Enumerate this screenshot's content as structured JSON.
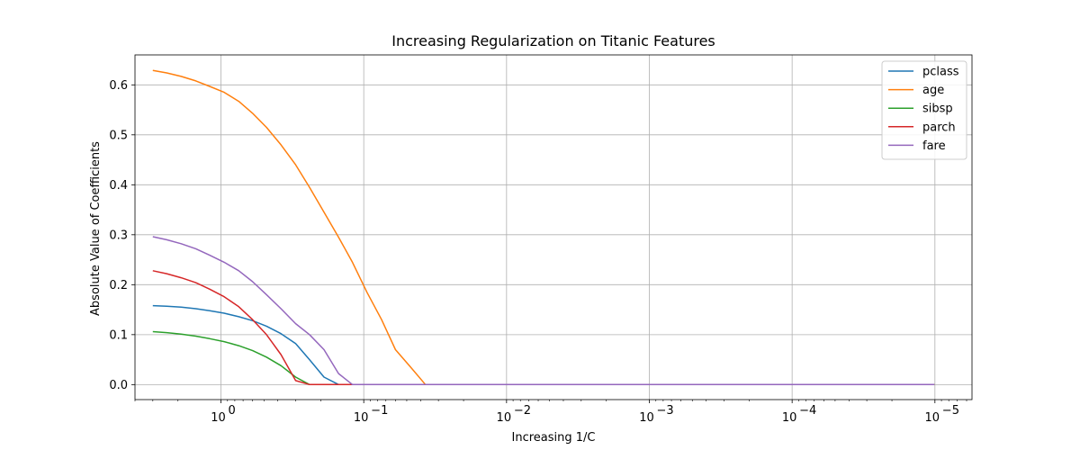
{
  "chart_data": {
    "type": "line",
    "title": "Increasing Regularization on Titanic Features",
    "xlabel": "Increasing 1/C",
    "ylabel": "Absolute Value of Coefficients",
    "x_scale": "log",
    "x_inverted": true,
    "xlim": [
      4.0,
      5.5e-06
    ],
    "ylim": [
      -0.03,
      0.66
    ],
    "grid": true,
    "legend_position": "top-right",
    "x_ticks": [
      {
        "value": 1,
        "label": "10",
        "exp": "0"
      },
      {
        "value": 0.1,
        "label": "10",
        "exp": "−1"
      },
      {
        "value": 0.01,
        "label": "10",
        "exp": "−2"
      },
      {
        "value": 0.001,
        "label": "10",
        "exp": "−3"
      },
      {
        "value": 0.0001,
        "label": "10",
        "exp": "−4"
      },
      {
        "value": 1e-05,
        "label": "10",
        "exp": "−5"
      }
    ],
    "y_ticks": [
      0.0,
      0.1,
      0.2,
      0.3,
      0.4,
      0.5,
      0.6
    ],
    "y_tick_labels": [
      "0.0",
      "0.1",
      "0.2",
      "0.3",
      "0.4",
      "0.5",
      "0.6"
    ],
    "x": [
      3.0,
      2.4,
      1.9,
      1.5,
      1.2,
      0.95,
      0.75,
      0.6,
      0.48,
      0.38,
      0.3,
      0.24,
      0.19,
      0.15,
      0.12,
      0.095,
      0.075,
      0.06,
      0.047,
      0.037,
      0.03,
      0.025,
      1.01e-05
    ],
    "series": [
      {
        "name": "pclass",
        "color": "#1f77b4",
        "values": [
          0.158,
          0.157,
          0.155,
          0.152,
          0.148,
          0.143,
          0.136,
          0.128,
          0.117,
          0.102,
          0.082,
          0.05,
          0.015,
          0.0,
          0.0,
          0.0,
          0.0,
          0.0,
          0.0,
          0.0,
          0.0,
          0.0,
          0.0
        ]
      },
      {
        "name": "age",
        "color": "#ff7f0e",
        "values": [
          0.629,
          0.624,
          0.617,
          0.608,
          0.597,
          0.585,
          0.567,
          0.543,
          0.515,
          0.48,
          0.44,
          0.395,
          0.345,
          0.295,
          0.245,
          0.185,
          0.13,
          0.07,
          0.035,
          0.0,
          0.0,
          0.0,
          0.0
        ]
      },
      {
        "name": "sibsp",
        "color": "#2ca02c",
        "values": [
          0.106,
          0.104,
          0.101,
          0.097,
          0.092,
          0.086,
          0.078,
          0.068,
          0.055,
          0.038,
          0.015,
          0.0,
          0.0,
          0.0,
          0.0,
          0.0,
          0.0,
          0.0,
          0.0,
          0.0,
          0.0,
          0.0,
          0.0
        ]
      },
      {
        "name": "parch",
        "color": "#d62728",
        "values": [
          0.228,
          0.222,
          0.214,
          0.204,
          0.191,
          0.176,
          0.156,
          0.13,
          0.1,
          0.06,
          0.008,
          0.0,
          0.0,
          0.0,
          0.0,
          0.0,
          0.0,
          0.0,
          0.0,
          0.0,
          0.0,
          0.0,
          0.0
        ]
      },
      {
        "name": "fare",
        "color": "#9467bd",
        "values": [
          0.296,
          0.29,
          0.282,
          0.272,
          0.259,
          0.245,
          0.228,
          0.206,
          0.18,
          0.152,
          0.122,
          0.1,
          0.07,
          0.022,
          0.0,
          0.0,
          0.0,
          0.0,
          0.0,
          0.0,
          0.0,
          0.0,
          0.0
        ]
      }
    ]
  }
}
